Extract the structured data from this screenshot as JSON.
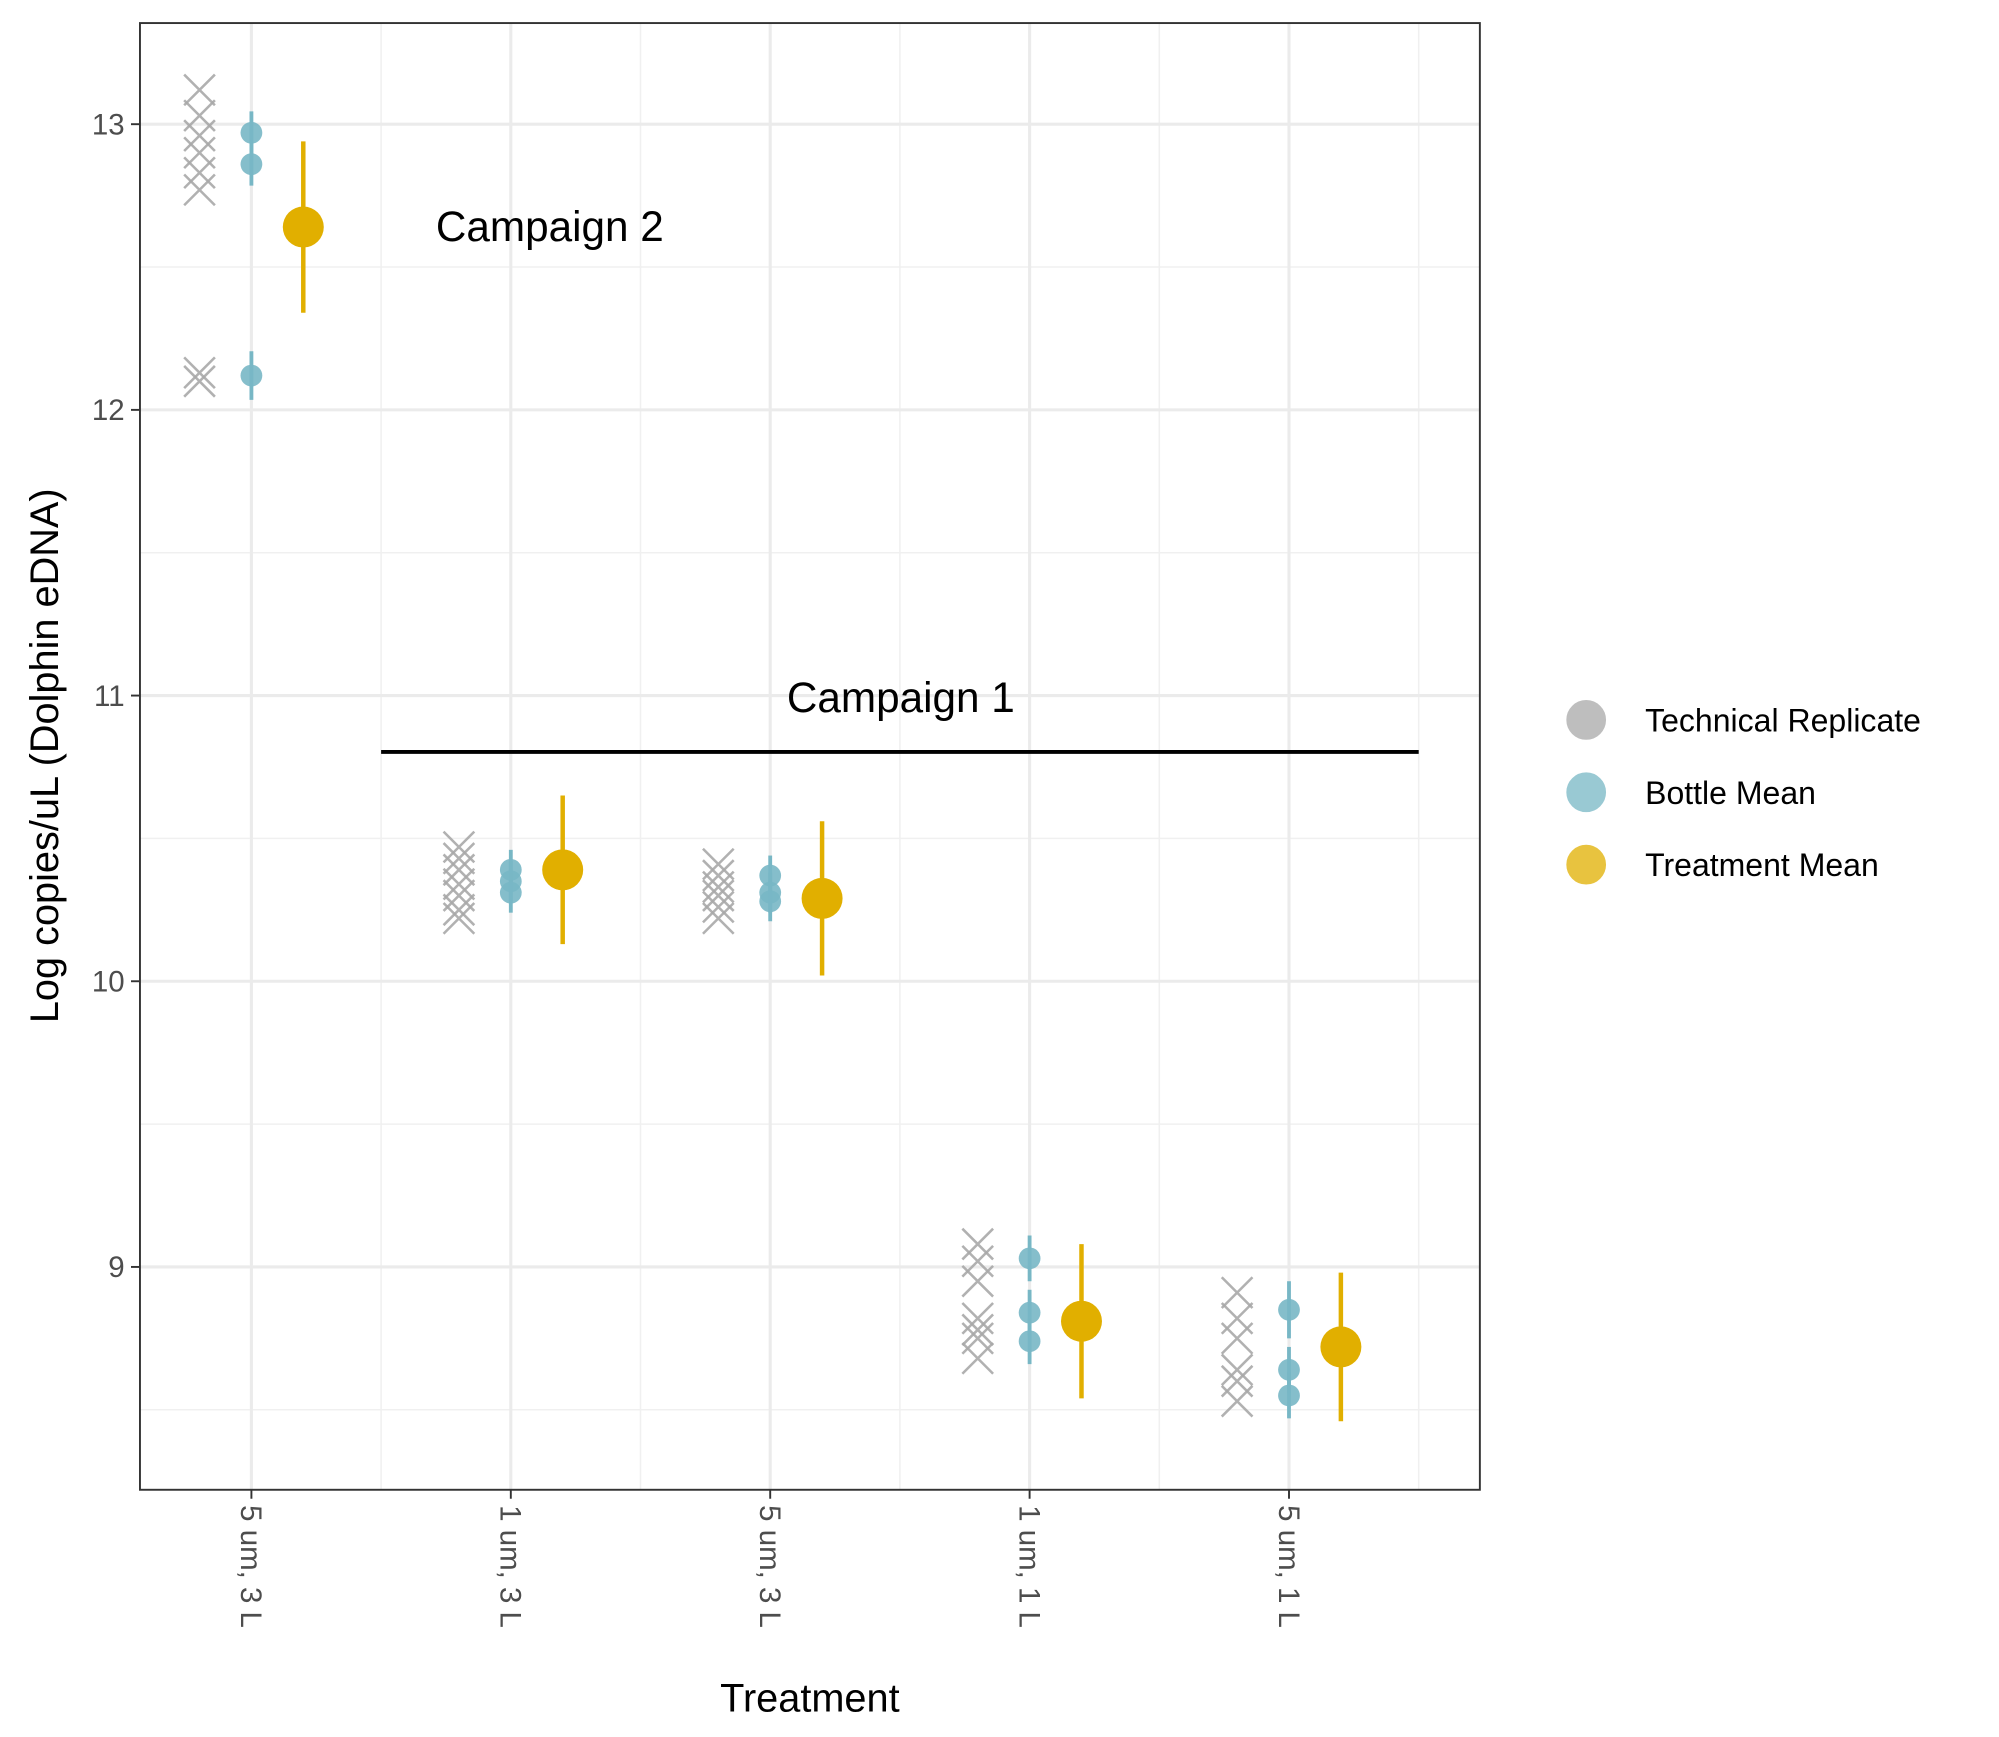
{
  "chart_data": {
    "type": "scatter",
    "x_label": "Treatment",
    "y_label": "Log copies/uL (Dolphin eDNA)",
    "categories": [
      "5 um, 3 L",
      "1 um, 3 L",
      "5 um, 3 L",
      "1 um, 1 L",
      "5 um, 1 L"
    ],
    "ylim": [
      8.22,
      13.354
    ],
    "yticks": [
      9,
      10,
      11,
      12,
      13
    ],
    "grid": true,
    "legend": "right",
    "annotations": [
      {
        "text": "Campaign 2"
      },
      {
        "text": "Campaign 1"
      }
    ],
    "series": [
      {
        "name": "Technical Replicate",
        "color": "#a9a9a9",
        "marker": "x",
        "values": [
          [
            13.12,
            13.03,
            12.96,
            12.9,
            12.83,
            12.77,
            12.13,
            12.1
          ],
          [
            10.47,
            10.43,
            10.39,
            10.34,
            10.3,
            10.25,
            10.22
          ],
          [
            10.41,
            10.37,
            10.33,
            10.3,
            10.26,
            10.22
          ],
          [
            9.08,
            9.02,
            8.95,
            8.82,
            8.78,
            8.75,
            8.68
          ],
          [
            8.91,
            8.82,
            8.75,
            8.64,
            8.6,
            8.53
          ]
        ]
      },
      {
        "name": "Bottle Mean",
        "color": "#78b7c5",
        "marker": "circle",
        "values": [
          [
            12.97,
            12.86,
            12.12
          ],
          [
            10.39,
            10.35,
            10.31
          ],
          [
            10.37,
            10.31,
            10.28
          ],
          [
            9.03,
            8.84,
            8.74
          ],
          [
            8.85,
            8.64,
            8.55
          ]
        ],
        "errors": [
          [
            0.075,
            0.075,
            0.085
          ],
          [
            0.07,
            0.07,
            0.07
          ],
          [
            0.07,
            0.07,
            0.07
          ],
          [
            0.08,
            0.08,
            0.08
          ],
          [
            0.1,
            0.08,
            0.08
          ]
        ]
      },
      {
        "name": "Treatment Mean",
        "color": "#e1af00",
        "marker": "big-circle",
        "values": [
          [
            12.64
          ],
          [
            10.39
          ],
          [
            10.29
          ],
          [
            8.81
          ],
          [
            8.72
          ]
        ],
        "errors": [
          [
            0.3
          ],
          [
            0.26
          ],
          [
            0.27
          ],
          [
            0.27
          ],
          [
            0.26
          ]
        ]
      }
    ]
  }
}
